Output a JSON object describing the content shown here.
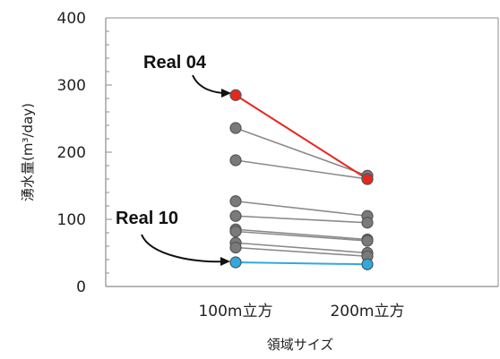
{
  "chart_data": {
    "type": "line",
    "categories": [
      "100m立方",
      "200m立方"
    ],
    "xlabel": "領域サイズ",
    "ylabel": "湧水量(m³/day)",
    "ylim": [
      0,
      400
    ],
    "yticks": [
      0,
      100,
      200,
      300,
      400
    ],
    "grid": false,
    "legend": "none",
    "series": [
      {
        "name": "Real 04",
        "values": [
          285,
          160
        ],
        "color": "#e8261c",
        "line_color": "#e8261c"
      },
      {
        "values": [
          236,
          165
        ],
        "color": "#7a7a7a",
        "line_color": "#8a8a8a"
      },
      {
        "values": [
          188,
          160
        ],
        "color": "#7a7a7a",
        "line_color": "#8a8a8a"
      },
      {
        "values": [
          127,
          105
        ],
        "color": "#7a7a7a",
        "line_color": "#8a8a8a"
      },
      {
        "values": [
          105,
          95
        ],
        "color": "#7a7a7a",
        "line_color": "#8a8a8a"
      },
      {
        "values": [
          85,
          70
        ],
        "color": "#7a7a7a",
        "line_color": "#8a8a8a"
      },
      {
        "values": [
          82,
          68
        ],
        "color": "#7a7a7a",
        "line_color": "#8a8a8a"
      },
      {
        "values": [
          65,
          50
        ],
        "color": "#7a7a7a",
        "line_color": "#8a8a8a"
      },
      {
        "values": [
          58,
          45
        ],
        "color": "#7a7a7a",
        "line_color": "#8a8a8a"
      },
      {
        "name": "Real 10",
        "values": [
          36,
          33
        ],
        "color": "#2eaae1",
        "line_color": "#2eaae1"
      }
    ],
    "annotations": [
      {
        "text": "Real 04",
        "series": 0,
        "category": 0
      },
      {
        "text": "Real 10",
        "series": 9,
        "category": 0
      }
    ]
  },
  "colors": {
    "axis": "#8c8c8c",
    "point_stroke": "#555555"
  }
}
